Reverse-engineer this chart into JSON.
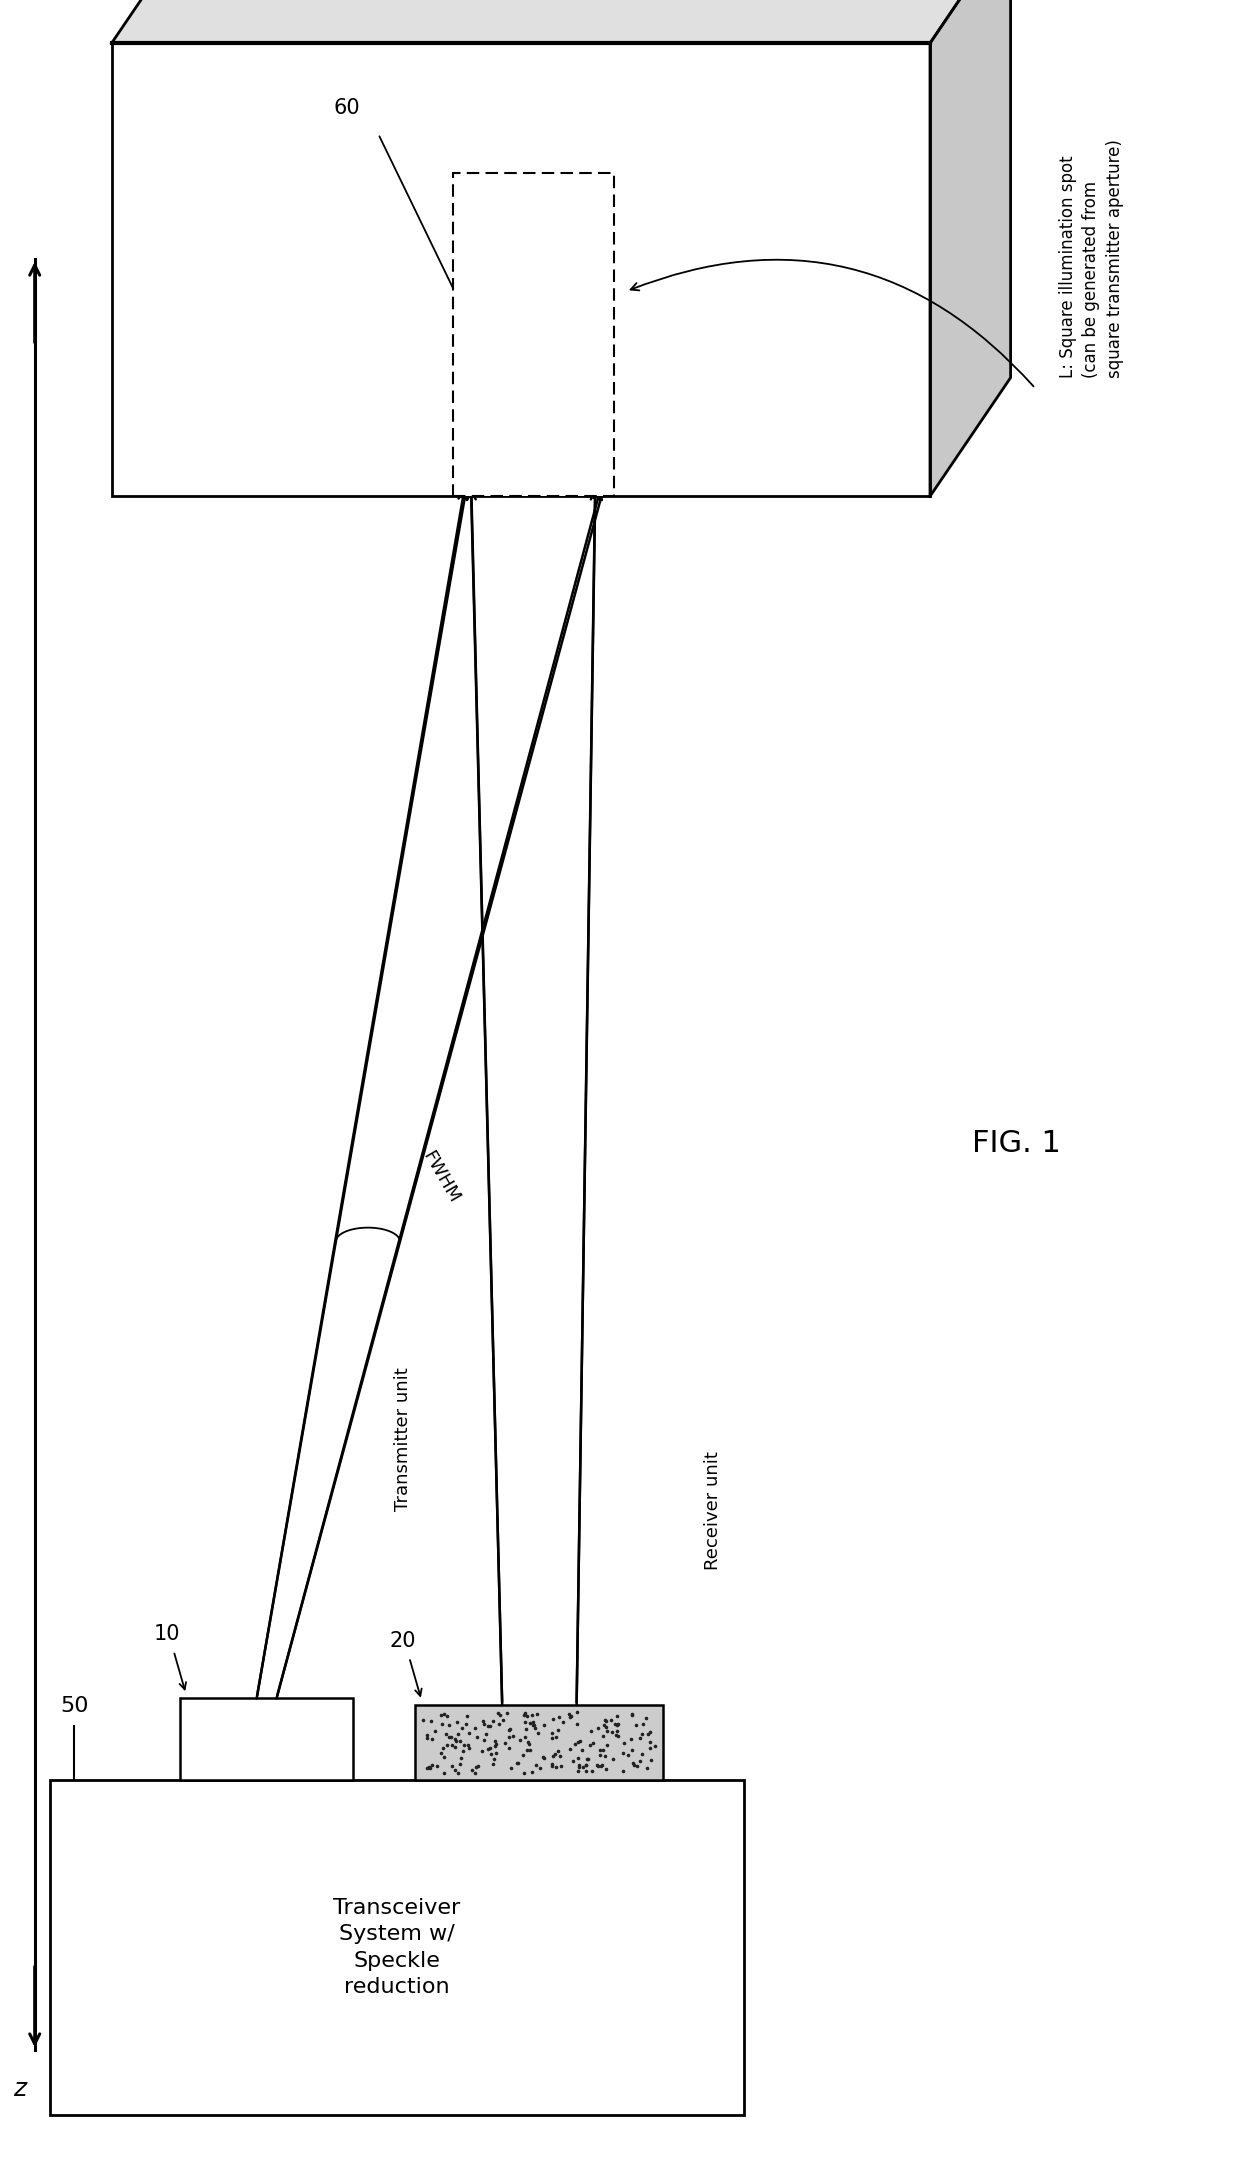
{
  "fig_label": "FIG. 1",
  "bg_color": "#ffffff",
  "line_color": "#000000",
  "box50_label": "Transceiver\nSystem w/\nSpeckle\nreduction",
  "box50_ref": "50",
  "transmitter_ref": "10",
  "transmitter_label": "Transmitter unit",
  "receiver_ref": "20",
  "receiver_label": "Receiver unit",
  "target_ref": "60",
  "target_label_line1": "L: Square illumination spot",
  "target_label_line2": "(can be generated from",
  "target_label_line3": "square transmitter aperture)",
  "fwhm_label": "FWHM",
  "z_label": "z",
  "fig_width": 12.4,
  "fig_height": 21.58,
  "dpi": 100
}
